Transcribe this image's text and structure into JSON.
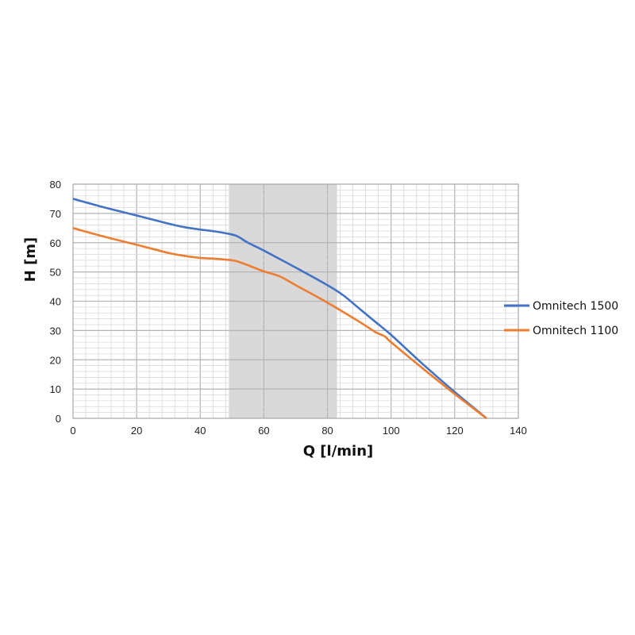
{
  "chart_data": {
    "type": "line",
    "title": "",
    "xlabel": "Q [l/min]",
    "ylabel": "H [m]",
    "xlim": [
      0,
      140
    ],
    "ylim": [
      0,
      80
    ],
    "x_ticks": [
      0,
      20,
      40,
      60,
      80,
      100,
      120,
      140
    ],
    "y_ticks": [
      0,
      10,
      20,
      30,
      40,
      50,
      60,
      70,
      80
    ],
    "grid": true,
    "legend_position": "right",
    "highlight_band": {
      "x_start": 49,
      "x_end": 83,
      "color": "#d9d9d9"
    },
    "series": [
      {
        "name": "Omnitech 1500",
        "color": "#4472c4",
        "points": [
          [
            0,
            75
          ],
          [
            10,
            72
          ],
          [
            20,
            69.3
          ],
          [
            30,
            66.5
          ],
          [
            35,
            65.3
          ],
          [
            40,
            64.5
          ],
          [
            45,
            63.8
          ],
          [
            50,
            62.8
          ],
          [
            52,
            62
          ],
          [
            55,
            60
          ],
          [
            60,
            57.3
          ],
          [
            70,
            51.5
          ],
          [
            80,
            45.5
          ],
          [
            85,
            42
          ],
          [
            90,
            37.5
          ],
          [
            95,
            33
          ],
          [
            100,
            28.5
          ],
          [
            110,
            18.5
          ],
          [
            120,
            9
          ],
          [
            130,
            0
          ]
        ]
      },
      {
        "name": "Omnitech 1100",
        "color": "#ed7d31",
        "points": [
          [
            0,
            65
          ],
          [
            10,
            62
          ],
          [
            20,
            59.3
          ],
          [
            30,
            56.5
          ],
          [
            35,
            55.5
          ],
          [
            40,
            54.8
          ],
          [
            45,
            54.5
          ],
          [
            50,
            54
          ],
          [
            52,
            53.5
          ],
          [
            55,
            52.3
          ],
          [
            60,
            50.2
          ],
          [
            65,
            48.5
          ],
          [
            70,
            45.5
          ],
          [
            80,
            39.5
          ],
          [
            90,
            33
          ],
          [
            95,
            29.5
          ],
          [
            98,
            28
          ],
          [
            100,
            26
          ],
          [
            110,
            17
          ],
          [
            120,
            8.3
          ],
          [
            130,
            0
          ]
        ]
      }
    ]
  }
}
